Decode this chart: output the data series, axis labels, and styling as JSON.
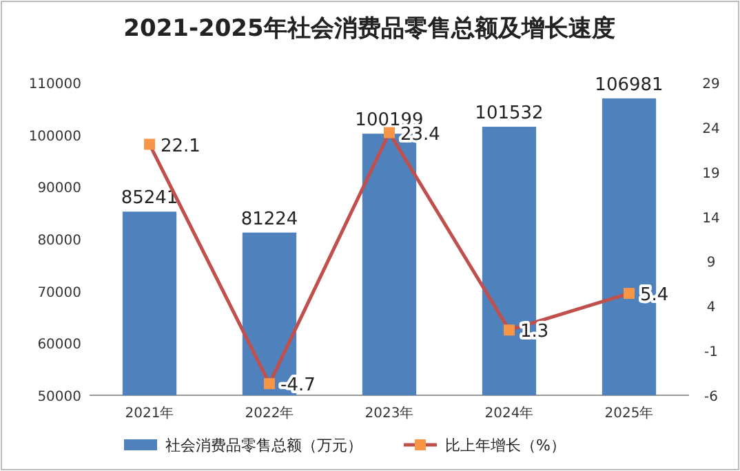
{
  "chart_data": {
    "type": "bar",
    "title": "2021-2025年社会消费品零售总额及增长速度",
    "categories": [
      "2021年",
      "2022年",
      "2023年",
      "2024年",
      "2025年"
    ],
    "series": [
      {
        "name": "社会消费品零售总额（万元）",
        "color": "#4f81bd",
        "values": [
          85241,
          81224,
          100199,
          101532,
          106981
        ]
      },
      {
        "name": "比上年增长（%）",
        "type": "line",
        "axis": "y2",
        "color": "#c0504d",
        "marker": "square",
        "values": [
          22.1,
          -4.7,
          23.4,
          1.3,
          5.4
        ]
      }
    ],
    "ylim": [
      50000,
      110000
    ],
    "yticks": [
      50000,
      60000,
      70000,
      80000,
      90000,
      100000,
      110000
    ],
    "y2lim": [
      -6,
      29
    ],
    "y2ticks": [
      -6,
      -1,
      4,
      9,
      14,
      19,
      24,
      29
    ],
    "data_labels": true,
    "legend": "bottom"
  }
}
